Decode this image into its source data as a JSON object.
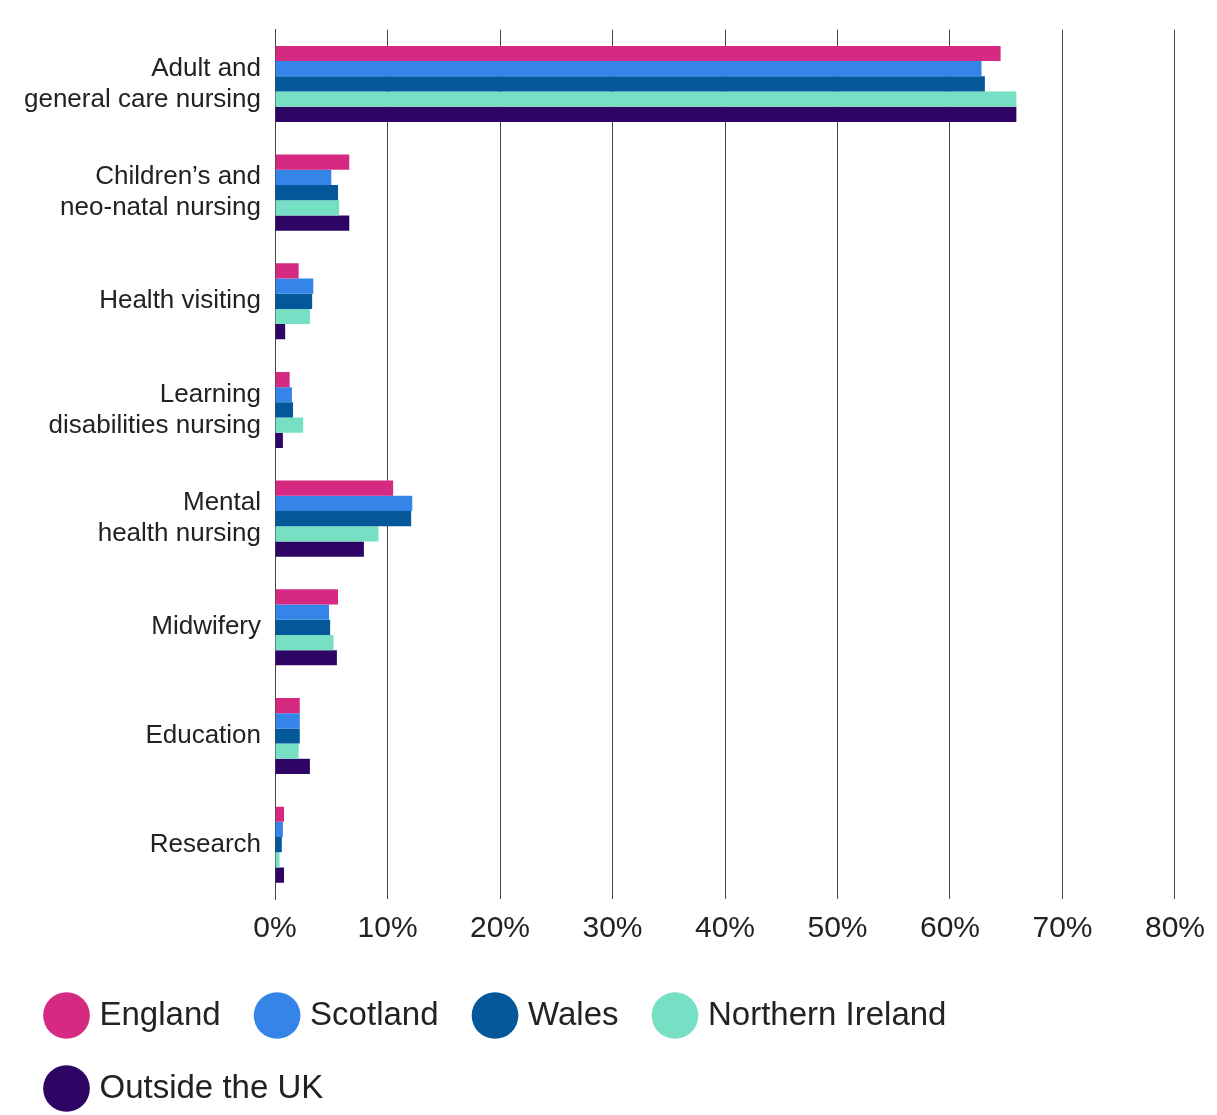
{
  "chart_data": {
    "type": "bar",
    "orientation": "horizontal",
    "categories": [
      "Adult and general care nursing",
      "Children’s and neo-natal nursing",
      "Health visiting",
      "Learning disabilities nursing",
      "Mental health nursing",
      "Midwifery",
      "Education",
      "Research"
    ],
    "series": [
      {
        "name": "England",
        "color": "#d62a82",
        "values": [
          64.5,
          6.6,
          2.1,
          1.3,
          10.5,
          5.6,
          2.2,
          0.8
        ]
      },
      {
        "name": "Scotland",
        "color": "#3584e8",
        "values": [
          62.8,
          5.0,
          3.4,
          1.5,
          12.2,
          4.8,
          2.2,
          0.7
        ]
      },
      {
        "name": "Wales",
        "color": "#04589a",
        "values": [
          63.1,
          5.6,
          3.3,
          1.6,
          12.1,
          4.9,
          2.2,
          0.6
        ]
      },
      {
        "name": "Northern Ireland",
        "color": "#76dfc4",
        "values": [
          65.9,
          5.7,
          3.1,
          2.5,
          9.2,
          5.2,
          2.1,
          0.4
        ]
      },
      {
        "name": "Outside the UK",
        "color": "#2e0565",
        "values": [
          65.9,
          6.6,
          0.9,
          0.7,
          7.9,
          5.5,
          3.1,
          0.8
        ]
      }
    ],
    "xlim": [
      0,
      80
    ],
    "xticks": [
      {
        "value": 0,
        "label": "0%"
      },
      {
        "value": 10,
        "label": "10%"
      },
      {
        "value": 20,
        "label": "20%"
      },
      {
        "value": 30,
        "label": "30%"
      },
      {
        "value": 40,
        "label": "40%"
      },
      {
        "value": 50,
        "label": "50%"
      },
      {
        "value": 60,
        "label": "60%"
      },
      {
        "value": 70,
        "label": "70%"
      },
      {
        "value": 80,
        "label": "80%"
      }
    ],
    "grid": "x",
    "legend": "bottom"
  }
}
